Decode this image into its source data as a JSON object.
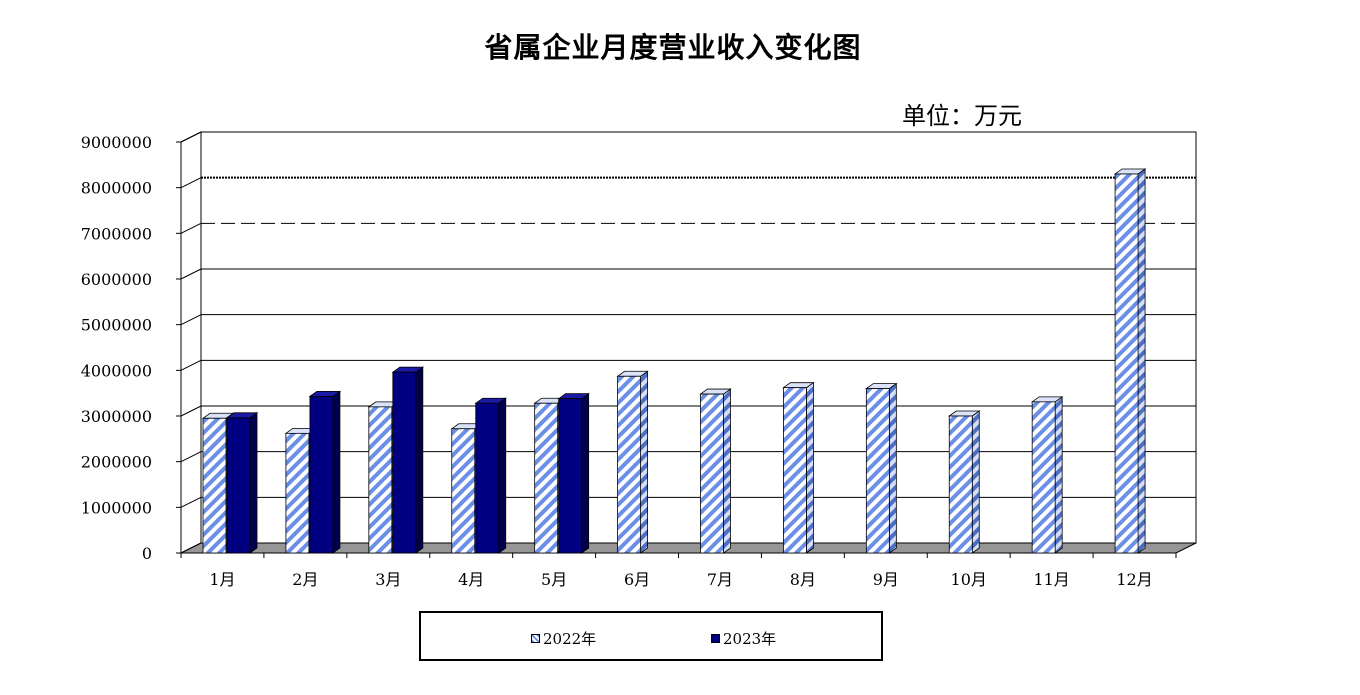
{
  "title": "省属企业月度营业收入变化图",
  "unit_label": "单位：万元",
  "colors": {
    "series_2022": "#ffffff",
    "series_2022_stripe": "#6b8fe6",
    "series_2023": "#000080",
    "floor": "#969696"
  },
  "chart_data": {
    "type": "bar",
    "title": "省属企业月度营业收入变化图",
    "ylabel": "单位：万元",
    "xlabel": "",
    "ylim": [
      0,
      9000000
    ],
    "y_ticks": [
      "0",
      "1000000",
      "2000000",
      "3000000",
      "4000000",
      "5000000",
      "6000000",
      "7000000",
      "8000000",
      "9000000"
    ],
    "categories": [
      "1月",
      "2月",
      "3月",
      "4月",
      "5月",
      "6月",
      "7月",
      "8月",
      "9月",
      "10月",
      "11月",
      "12月"
    ],
    "series": [
      {
        "name": "2022年",
        "values": [
          2950000,
          2620000,
          3200000,
          2720000,
          3280000,
          3870000,
          3480000,
          3620000,
          3600000,
          3000000,
          3310000,
          8300000
        ]
      },
      {
        "name": "2023年",
        "values": [
          2960000,
          3430000,
          3960000,
          3280000,
          3380000,
          null,
          null,
          null,
          null,
          null,
          null,
          null
        ]
      }
    ],
    "grid": true,
    "legend_position": "bottom"
  }
}
